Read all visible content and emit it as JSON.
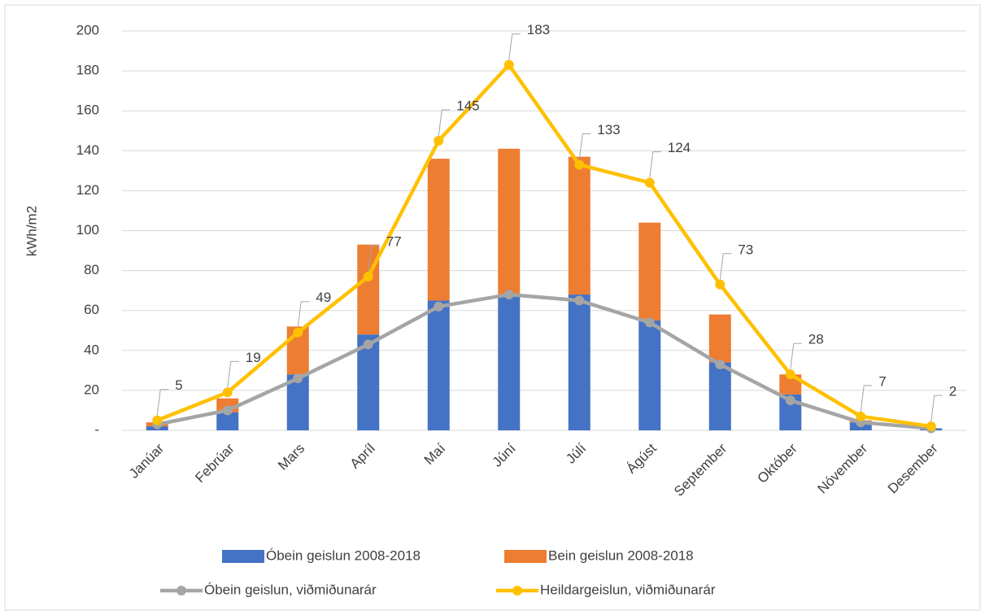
{
  "chart_data": {
    "type": "bar-line",
    "y_label": "kWh/m2",
    "categories": [
      "Janúar",
      "Febrúar",
      "Mars",
      "Apríl",
      "Maí",
      "Júní",
      "Júlí",
      "Ágúst",
      "September",
      "Október",
      "Nóvember",
      "Desember"
    ],
    "ylim": [
      0,
      200
    ],
    "yticks": [
      {
        "value": 0,
        "label": "-"
      },
      20,
      40,
      60,
      80,
      100,
      120,
      140,
      160,
      180,
      200
    ],
    "grid": true,
    "legend": "bottom",
    "series": [
      {
        "name": "Óbein geislun 2008-2018",
        "type": "bar",
        "color": "#4472c4",
        "values": [
          2,
          9,
          28,
          48,
          65,
          68,
          68,
          55,
          34,
          18,
          4,
          1
        ]
      },
      {
        "name": "Bein geislun 2008-2018",
        "type": "bar",
        "color": "#ed7d31",
        "values": [
          2,
          7,
          24,
          45,
          71,
          73,
          69,
          49,
          24,
          10,
          1,
          0
        ]
      },
      {
        "name": "Óbein geislun, viðmiðunarár",
        "type": "line",
        "color": "#a5a5a5",
        "values": [
          3,
          10,
          26,
          43,
          62,
          68,
          65,
          54,
          33,
          15,
          4,
          1
        ]
      },
      {
        "name": "Heildargeislun, viðmiðunarár",
        "type": "line",
        "color": "#ffc000",
        "values": [
          5,
          19,
          49,
          77,
          145,
          183,
          133,
          124,
          73,
          28,
          7,
          2
        ],
        "data_labels": true
      }
    ]
  }
}
